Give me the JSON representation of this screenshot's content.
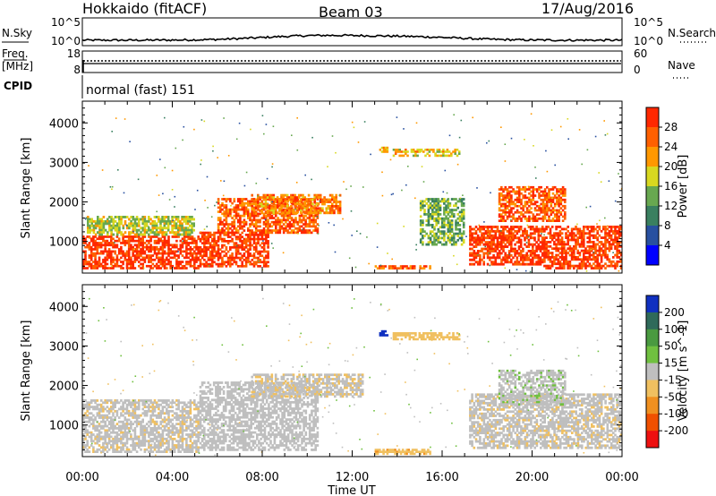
{
  "header": {
    "title": "Hokkaido (fitACF)",
    "beam": "Beam 03",
    "date": "17/Aug/2016"
  },
  "top_panels": {
    "nsky_label": "N.Sky",
    "nsearch_label": "N.Search",
    "noise_ticks_left": [
      "10^5",
      "10^0"
    ],
    "noise_ticks_right": [
      "10^5",
      "10^0"
    ],
    "freq_label_line1": "Freq.",
    "freq_label_line2": "[MHz]",
    "freq_ticks": [
      "18",
      "8"
    ],
    "nave_label": "Nave",
    "nave_ticks": [
      "60",
      "0"
    ],
    "cpid_label": "CPID",
    "cpid_value": "normal (fast) 151"
  },
  "colors": {
    "power_scale": [
      "#0000ff",
      "#2850a0",
      "#3a8060",
      "#68a850",
      "#d8d820",
      "#ff9800",
      "#ff6000",
      "#ff2800"
    ],
    "velocity_scale": [
      "#1030c0",
      "#2f6a5a",
      "#4a9a40",
      "#70c040",
      "#bfbfbf",
      "#f0c060",
      "#f09020",
      "#f05000",
      "#ee1010"
    ]
  },
  "chart_data": [
    {
      "type": "heatmap",
      "name": "power",
      "ylabel": "Slant Range [km]",
      "yticks": [
        "4000",
        "3000",
        "2000",
        "1000"
      ],
      "ylim": [
        200,
        4550
      ],
      "xlim": [
        0,
        24
      ],
      "colorbar_label": "Power [dB]",
      "colorbar_ticks": [
        "28",
        "24",
        "20",
        "16",
        "12",
        "8",
        "4"
      ],
      "colorbar_range": [
        0,
        32
      ],
      "regions": [
        {
          "t0": 0.0,
          "t1": 5.2,
          "r0": 300,
          "r1": 1150,
          "level": 30
        },
        {
          "t0": 0.2,
          "t1": 5.0,
          "r0": 1150,
          "r1": 1650,
          "level": 17
        },
        {
          "t0": 5.2,
          "t1": 8.3,
          "r0": 350,
          "r1": 1250,
          "level": 29
        },
        {
          "t0": 6.0,
          "t1": 10.5,
          "r0": 1200,
          "r1": 2100,
          "level": 27
        },
        {
          "t0": 7.5,
          "t1": 11.5,
          "r0": 1700,
          "r1": 2200,
          "level": 24
        },
        {
          "t0": 13.0,
          "t1": 15.5,
          "r0": 300,
          "r1": 400,
          "level": 26
        },
        {
          "t0": 15.0,
          "t1": 17.0,
          "r0": 900,
          "r1": 2100,
          "level": 14
        },
        {
          "t0": 13.8,
          "t1": 16.8,
          "r0": 3150,
          "r1": 3350,
          "level": 20
        },
        {
          "t0": 13.2,
          "t1": 13.6,
          "r0": 3250,
          "r1": 3400,
          "level": 21
        },
        {
          "t0": 17.2,
          "t1": 20.5,
          "r0": 400,
          "r1": 1400,
          "level": 29
        },
        {
          "t0": 18.5,
          "t1": 21.5,
          "r0": 1500,
          "r1": 2400,
          "level": 27
        },
        {
          "t0": 20.5,
          "t1": 24.0,
          "r0": 300,
          "r1": 1400,
          "level": 29
        }
      ]
    },
    {
      "type": "heatmap",
      "name": "velocity",
      "ylabel": "Slant Range [km]",
      "yticks": [
        "4000",
        "3000",
        "2000",
        "1000"
      ],
      "ylim": [
        200,
        4550
      ],
      "xlim": [
        0,
        24
      ],
      "xticks": [
        "00:00",
        "04:00",
        "08:00",
        "12:00",
        "16:00",
        "20:00",
        "00:00"
      ],
      "xlabel": "Time UT",
      "colorbar_label": "Velocity [m s^-1]",
      "colorbar_ticks": [
        "200",
        "100",
        "50",
        "15",
        "-15",
        "-50",
        "-100",
        "-200"
      ],
      "colorbar_range": [
        -250,
        250
      ],
      "regions": [
        {
          "t0": 0.0,
          "t1": 5.2,
          "r0": 300,
          "r1": 1650,
          "level": -5
        },
        {
          "t0": 5.2,
          "t1": 10.5,
          "r0": 350,
          "r1": 2100,
          "level": 0
        },
        {
          "t0": 7.5,
          "t1": 12.5,
          "r0": 1700,
          "r1": 2300,
          "level": -8
        },
        {
          "t0": 13.0,
          "t1": 15.5,
          "r0": 250,
          "r1": 400,
          "level": -40
        },
        {
          "t0": 13.2,
          "t1": 13.6,
          "r0": 3250,
          "r1": 3400,
          "level": 240
        },
        {
          "t0": 13.8,
          "t1": 16.8,
          "r0": 3150,
          "r1": 3350,
          "level": -30
        },
        {
          "t0": 17.2,
          "t1": 24.0,
          "r0": 400,
          "r1": 1800,
          "level": -5
        },
        {
          "t0": 18.5,
          "t1": 21.5,
          "r0": 1500,
          "r1": 2400,
          "level": 5
        }
      ]
    }
  ]
}
